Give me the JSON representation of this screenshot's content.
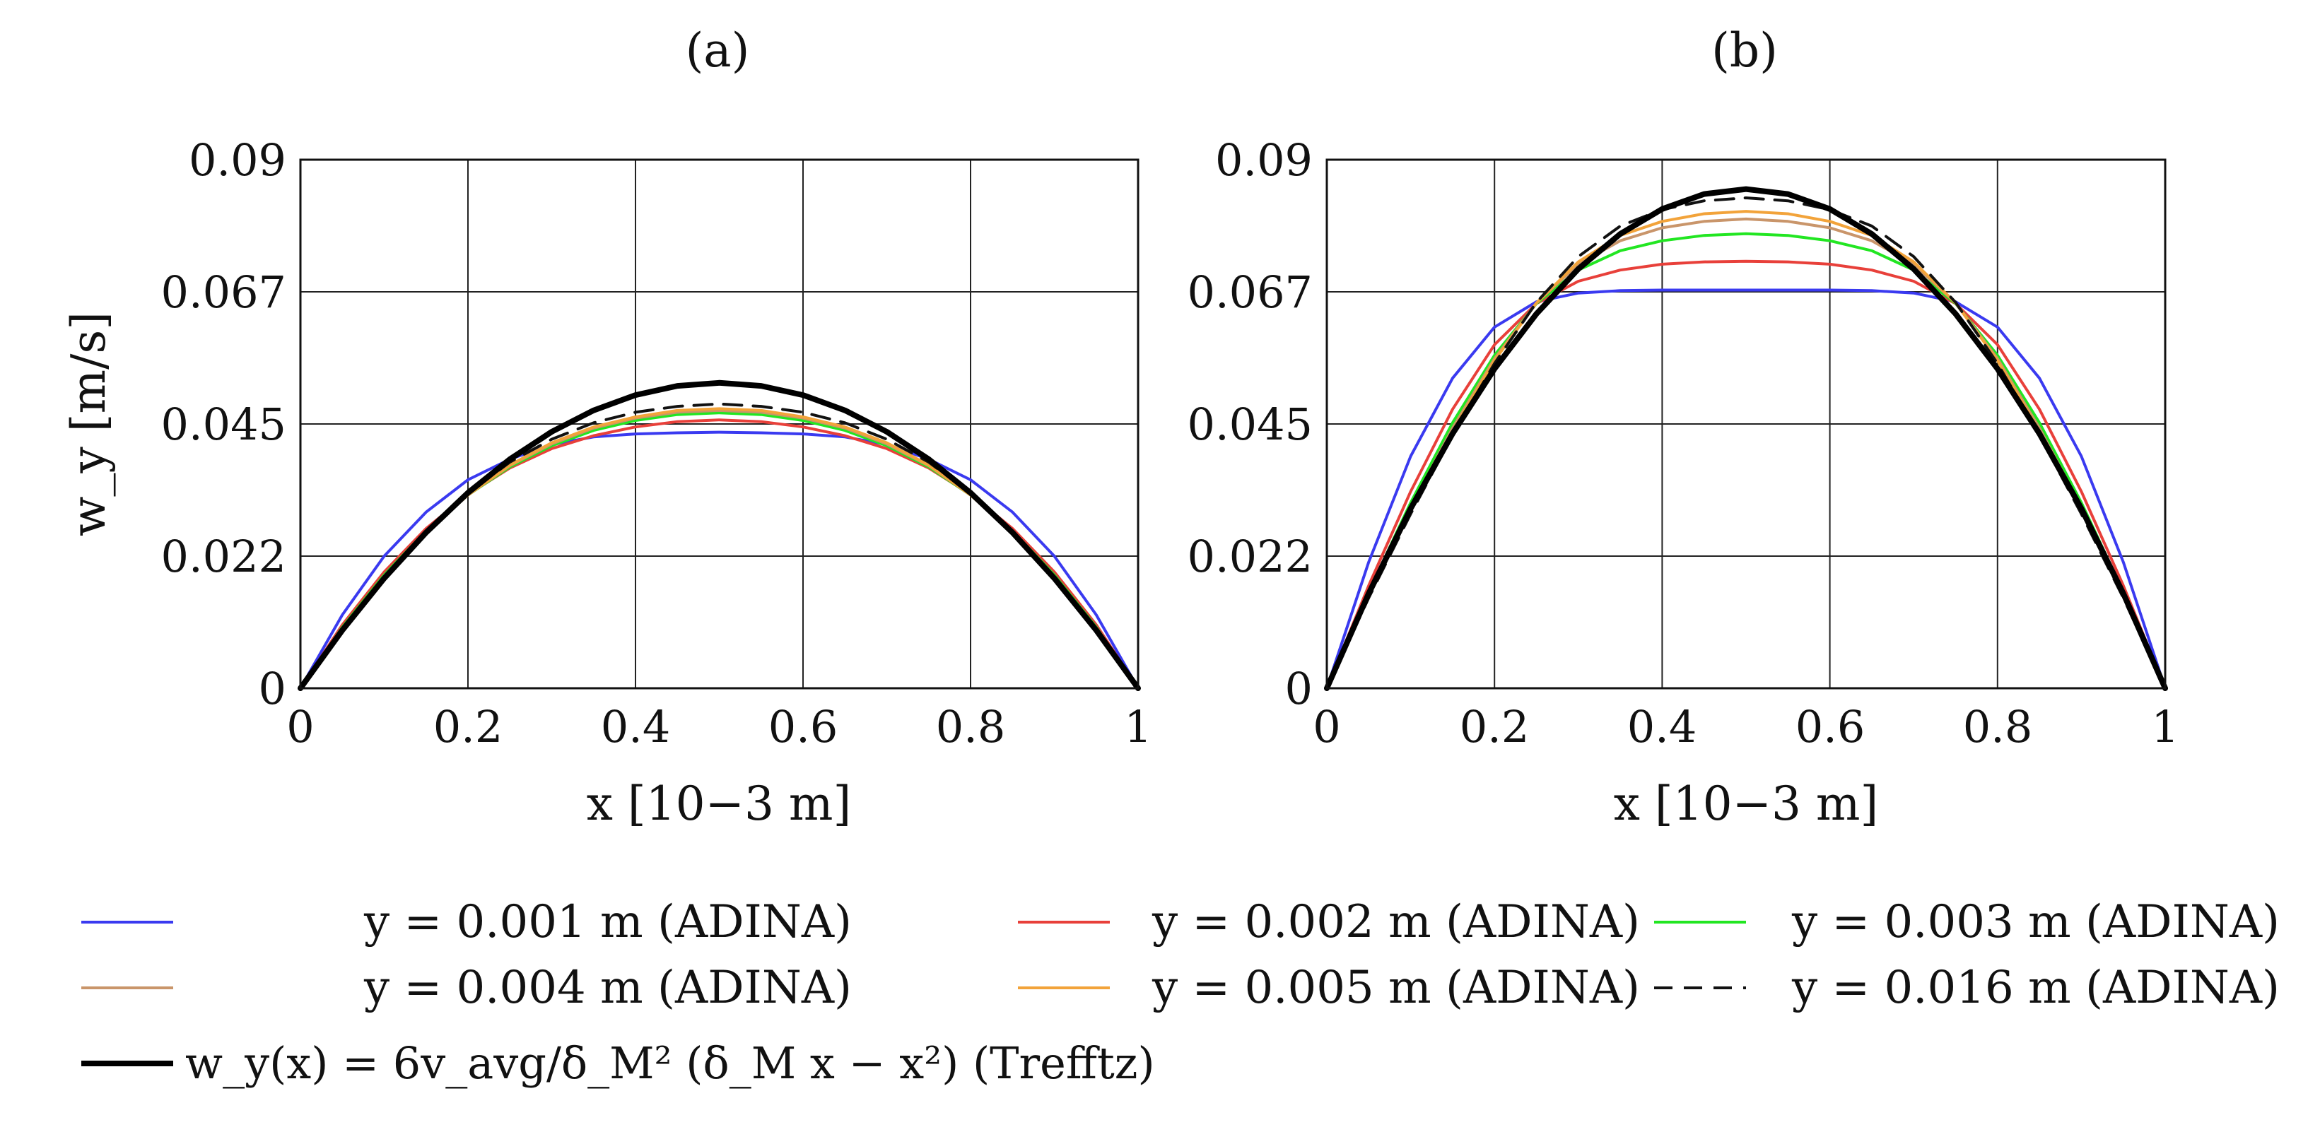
{
  "chart_data": [
    {
      "type": "line",
      "title": "(a)",
      "xlabel": "x [10−3 m]",
      "ylabel": "w_y [m/s]",
      "xlim": [
        0,
        1
      ],
      "ylim": [
        0,
        0.09
      ],
      "xticks": [
        0,
        0.2,
        0.4,
        0.6,
        0.8,
        1
      ],
      "xtick_labels": [
        "0",
        "0.2",
        "0.4",
        "0.6",
        "0.8",
        "1"
      ],
      "yticks": [
        0,
        0.0225,
        0.045,
        0.0675,
        0.09
      ],
      "ytick_labels": [
        "0",
        "0.022",
        "0.045",
        "0.067",
        "0.09"
      ],
      "grid": true,
      "x": [
        0,
        0.05,
        0.1,
        0.15,
        0.2,
        0.25,
        0.3,
        0.35,
        0.4,
        0.45,
        0.5,
        0.55,
        0.6,
        0.65,
        0.7,
        0.75,
        0.8,
        0.85,
        0.9,
        0.95,
        1
      ],
      "series": [
        {
          "name": "y = 0.001 m (ADINA)",
          "color": "#3a3af0",
          "dash": "solid",
          "values": [
            0,
            0.0125,
            0.0225,
            0.03,
            0.0355,
            0.039,
            0.0415,
            0.0428,
            0.0433,
            0.0435,
            0.0436,
            0.0435,
            0.0433,
            0.0428,
            0.0415,
            0.039,
            0.0355,
            0.03,
            0.0225,
            0.0125,
            0
          ]
        },
        {
          "name": "y = 0.002 m (ADINA)",
          "color": "#e8403a",
          "dash": "solid",
          "values": [
            0,
            0.0108,
            0.0198,
            0.0272,
            0.033,
            0.0375,
            0.0408,
            0.043,
            0.0445,
            0.0454,
            0.0457,
            0.0454,
            0.0445,
            0.043,
            0.0408,
            0.0375,
            0.033,
            0.0272,
            0.0198,
            0.0108,
            0
          ]
        },
        {
          "name": "y = 0.003 m (ADINA)",
          "color": "#22e622",
          "dash": "solid",
          "values": [
            0,
            0.0104,
            0.0193,
            0.0268,
            0.0329,
            0.0377,
            0.0413,
            0.0439,
            0.0456,
            0.0466,
            0.0469,
            0.0466,
            0.0456,
            0.0439,
            0.0413,
            0.0377,
            0.0329,
            0.0268,
            0.0193,
            0.0104,
            0
          ]
        },
        {
          "name": "y = 0.004 m (ADINA)",
          "color": "#c9956a",
          "dash": "solid",
          "values": [
            0,
            0.0102,
            0.0191,
            0.0267,
            0.0329,
            0.0379,
            0.0416,
            0.0443,
            0.046,
            0.047,
            0.0473,
            0.047,
            0.046,
            0.0443,
            0.0416,
            0.0379,
            0.0329,
            0.0267,
            0.0191,
            0.0102,
            0
          ]
        },
        {
          "name": "y = 0.005 m (ADINA)",
          "color": "#f2a33a",
          "dash": "solid",
          "values": [
            0,
            0.0101,
            0.019,
            0.0266,
            0.0329,
            0.038,
            0.0418,
            0.0445,
            0.0462,
            0.0473,
            0.0476,
            0.0473,
            0.0462,
            0.0445,
            0.0418,
            0.038,
            0.0329,
            0.0266,
            0.019,
            0.0101,
            0
          ]
        },
        {
          "name": "y = 0.016 m (ADINA)",
          "color": "#111111",
          "dash": "dashed",
          "values": [
            0,
            0.0099,
            0.0188,
            0.0266,
            0.0332,
            0.0385,
            0.0424,
            0.0452,
            0.047,
            0.048,
            0.0484,
            0.048,
            0.047,
            0.0452,
            0.0424,
            0.0385,
            0.0332,
            0.0266,
            0.0188,
            0.0099,
            0
          ]
        },
        {
          "name": "Trefftz",
          "color": "#000000",
          "dash": "solid",
          "bold": true,
          "values": [
            0,
            0.00988,
            0.01872,
            0.02652,
            0.03328,
            0.039,
            0.04368,
            0.04732,
            0.04992,
            0.05148,
            0.052,
            0.05148,
            0.04992,
            0.04732,
            0.04368,
            0.039,
            0.03328,
            0.02652,
            0.01872,
            0.00988,
            0
          ]
        }
      ]
    },
    {
      "type": "line",
      "title": "(b)",
      "xlabel": "x [10−3 m]",
      "ylabel": "",
      "xlim": [
        0,
        1
      ],
      "ylim": [
        0,
        0.09
      ],
      "xticks": [
        0,
        0.2,
        0.4,
        0.6,
        0.8,
        1
      ],
      "xtick_labels": [
        "0",
        "0.2",
        "0.4",
        "0.6",
        "0.8",
        "1"
      ],
      "yticks": [
        0,
        0.0225,
        0.045,
        0.0675,
        0.09
      ],
      "ytick_labels": [
        "0",
        "0.022",
        "0.045",
        "0.067",
        "0.09"
      ],
      "grid": true,
      "x": [
        0,
        0.05,
        0.1,
        0.15,
        0.2,
        0.25,
        0.3,
        0.35,
        0.4,
        0.45,
        0.5,
        0.55,
        0.6,
        0.65,
        0.7,
        0.75,
        0.8,
        0.85,
        0.9,
        0.95,
        1
      ],
      "series": [
        {
          "name": "y = 0.001 m (ADINA)",
          "color": "#3a3af0",
          "dash": "solid",
          "values": [
            0,
            0.0215,
            0.0395,
            0.0528,
            0.0615,
            0.0658,
            0.0673,
            0.0677,
            0.0678,
            0.0678,
            0.0678,
            0.0678,
            0.0678,
            0.0677,
            0.0673,
            0.0658,
            0.0615,
            0.0528,
            0.0395,
            0.0215,
            0
          ]
        },
        {
          "name": "y = 0.002 m (ADINA)",
          "color": "#e8403a",
          "dash": "solid",
          "values": [
            0,
            0.0175,
            0.0335,
            0.0475,
            0.0585,
            0.0655,
            0.0693,
            0.0712,
            0.0722,
            0.0726,
            0.0727,
            0.0726,
            0.0722,
            0.0712,
            0.0693,
            0.0655,
            0.0585,
            0.0475,
            0.0335,
            0.0175,
            0
          ]
        },
        {
          "name": "y = 0.003 m (ADINA)",
          "color": "#22e622",
          "dash": "solid",
          "values": [
            0,
            0.0164,
            0.0316,
            0.0452,
            0.0567,
            0.0655,
            0.0712,
            0.0745,
            0.0762,
            0.0771,
            0.0774,
            0.0771,
            0.0762,
            0.0745,
            0.0712,
            0.0655,
            0.0567,
            0.0452,
            0.0316,
            0.0164,
            0
          ]
        },
        {
          "name": "y = 0.004 m (ADINA)",
          "color": "#c9956a",
          "dash": "solid",
          "values": [
            0,
            0.016,
            0.0308,
            0.0443,
            0.0561,
            0.0656,
            0.0722,
            0.0762,
            0.0784,
            0.0795,
            0.0799,
            0.0795,
            0.0784,
            0.0762,
            0.0722,
            0.0656,
            0.0561,
            0.0443,
            0.0308,
            0.016,
            0
          ]
        },
        {
          "name": "y = 0.005 m (ADINA)",
          "color": "#f2a33a",
          "dash": "solid",
          "values": [
            0,
            0.0157,
            0.0303,
            0.0438,
            0.0558,
            0.0656,
            0.0726,
            0.0771,
            0.0795,
            0.0808,
            0.0812,
            0.0808,
            0.0795,
            0.0771,
            0.0726,
            0.0656,
            0.0558,
            0.0438,
            0.0303,
            0.0157,
            0
          ]
        },
        {
          "name": "y = 0.016 m (ADINA)",
          "color": "#111111",
          "dash": "dashed",
          "values": [
            0,
            0.0154,
            0.0297,
            0.0431,
            0.0553,
            0.0657,
            0.0735,
            0.0787,
            0.0815,
            0.083,
            0.0835,
            0.083,
            0.0815,
            0.0787,
            0.0735,
            0.0657,
            0.0553,
            0.0431,
            0.0297,
            0.0154,
            0
          ]
        },
        {
          "name": "Trefftz",
          "color": "#000000",
          "dash": "solid",
          "bold": true,
          "values": [
            0,
            0.01615,
            0.0306,
            0.04335,
            0.0544,
            0.06375,
            0.0714,
            0.07735,
            0.0816,
            0.08415,
            0.085,
            0.08415,
            0.0816,
            0.07735,
            0.0714,
            0.06375,
            0.0544,
            0.04335,
            0.0306,
            0.01615,
            0
          ]
        }
      ]
    }
  ],
  "legend": {
    "placement": "bottom",
    "entries": [
      {
        "label": "y = 0.001 m (ADINA)",
        "color": "#3a3af0",
        "dash": "solid"
      },
      {
        "label": "y = 0.002 m (ADINA)",
        "color": "#e8403a",
        "dash": "solid"
      },
      {
        "label": "y = 0.003 m (ADINA)",
        "color": "#22e622",
        "dash": "solid"
      },
      {
        "label": "y = 0.004 m (ADINA)",
        "color": "#c9956a",
        "dash": "solid"
      },
      {
        "label": "y = 0.005 m (ADINA)",
        "color": "#f2a33a",
        "dash": "solid"
      },
      {
        "label": "y = 0.016 m (ADINA)",
        "color": "#111111",
        "dash": "dashed"
      },
      {
        "label": "w_y(x) = 6v_avg/δ_M² (δ_M x − x²) (Trefftz)",
        "color": "#000000",
        "dash": "solid",
        "bold": true
      }
    ]
  }
}
